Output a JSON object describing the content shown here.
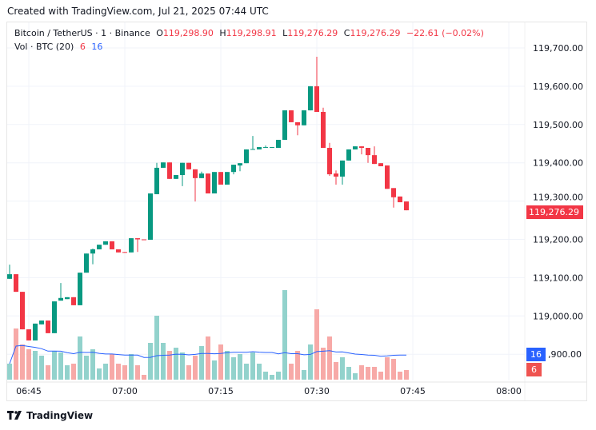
{
  "created": "Created with TradingView.com, Jul 21, 2025 07:44 UTC",
  "legend": {
    "symbol": "Bitcoin / TetherUS · 1 · Binance",
    "o_label": "O",
    "o": "119,298.90",
    "h_label": "H",
    "h": "119,298.91",
    "l_label": "L",
    "l": "119,276.29",
    "c_label": "C",
    "c": "119,276.29",
    "change": "−22.61 (−0.02%)",
    "vol_label": "Vol · BTC (20)",
    "vol": "6",
    "vol_ma": "16"
  },
  "price_badge": "119,276.29",
  "vol_badge": "6",
  "vol_ma_badge": "16",
  "logo_text": "TradingView",
  "colors": {
    "up": "#089981",
    "down": "#f23645",
    "vol_up": "#92d2cc",
    "vol_down": "#f7a9a7",
    "ma": "#2962ff",
    "grid": "#f0f3fa"
  },
  "chart_data": {
    "type": "candlestick",
    "y_ticks": [
      "119,700.00",
      "119,600.00",
      "119,500.00",
      "119,400.00",
      "119,300.00",
      "119,200.00",
      "119,100.00",
      "119,000.00",
      "118,900.00"
    ],
    "y_tick_values": [
      119700,
      119600,
      119500,
      119400,
      119300,
      119200,
      119100,
      119000,
      118900
    ],
    "x_ticks": [
      "06:45",
      "07:00",
      "07:15",
      "07:30",
      "07:45",
      "08:00"
    ],
    "start_time": "06:42",
    "interval_minutes": 1,
    "ohlc": [
      [
        119097,
        119134,
        119097,
        119109
      ],
      [
        119109,
        119109,
        119063,
        119063
      ],
      [
        119063,
        119063,
        118965,
        118965
      ],
      [
        118965,
        118965,
        118936,
        118936
      ],
      [
        118936,
        118980,
        118936,
        118980
      ],
      [
        118978,
        118988,
        118978,
        118988
      ],
      [
        118988,
        118988,
        118955,
        118955
      ],
      [
        118955,
        119038,
        118955,
        119038
      ],
      [
        119040,
        119086,
        119040,
        119047
      ],
      [
        119044,
        119049,
        119044,
        119049
      ],
      [
        119049,
        119049,
        119028,
        119028
      ],
      [
        119028,
        119113,
        119028,
        119113
      ],
      [
        119113,
        119163,
        119113,
        119163
      ],
      [
        119163,
        119176,
        119135,
        119174
      ],
      [
        119174,
        119186,
        119174,
        119186
      ],
      [
        119186,
        119195,
        119186,
        119195
      ],
      [
        119195,
        119195,
        119174,
        119174
      ],
      [
        119174,
        119174,
        119166,
        119166
      ],
      [
        119167,
        119167,
        119165,
        119165
      ],
      [
        119166,
        119203,
        119166,
        119203
      ],
      [
        119203,
        119203,
        119167,
        119200
      ],
      [
        119200,
        119200,
        119199,
        119199
      ],
      [
        119199,
        119320,
        119199,
        119320
      ],
      [
        119318,
        119400,
        119318,
        119387
      ],
      [
        119387,
        119401,
        119387,
        119401
      ],
      [
        119401,
        119401,
        119358,
        119358
      ],
      [
        119358,
        119368,
        119358,
        119368
      ],
      [
        119368,
        119400,
        119339,
        119400
      ],
      [
        119400,
        119400,
        119383,
        119383
      ],
      [
        119383,
        119383,
        119299,
        119360
      ],
      [
        119360,
        119377,
        119360,
        119372
      ],
      [
        119372,
        119372,
        119320,
        119320
      ],
      [
        119320,
        119376,
        119320,
        119376
      ],
      [
        119376,
        119376,
        119343,
        119343
      ],
      [
        119343,
        119376,
        119343,
        119376
      ],
      [
        119376,
        119395,
        119370,
        119395
      ],
      [
        119393,
        119399,
        119378,
        119399
      ],
      [
        119399,
        119435,
        119399,
        119435
      ],
      [
        119435,
        119470,
        119435,
        119436
      ],
      [
        119435,
        119441,
        119435,
        119441
      ],
      [
        119439,
        119445,
        119439,
        119441
      ],
      [
        119440,
        119441,
        119440,
        119441
      ],
      [
        119439,
        119460,
        119439,
        119460
      ],
      [
        119460,
        119537,
        119460,
        119537
      ],
      [
        119537,
        119537,
        119506,
        119506
      ],
      [
        119506,
        119506,
        119472,
        119498
      ],
      [
        119498,
        119537,
        119498,
        119537
      ],
      [
        119537,
        119600,
        119537,
        119600
      ],
      [
        119600,
        119677,
        119533,
        119533
      ],
      [
        119533,
        119544,
        119439,
        119439
      ],
      [
        119439,
        119452,
        119366,
        119370
      ],
      [
        119372,
        119380,
        119343,
        119364
      ],
      [
        119364,
        119406,
        119343,
        119406
      ],
      [
        119406,
        119435,
        119406,
        119435
      ],
      [
        119435,
        119443,
        119435,
        119443
      ],
      [
        119443,
        119443,
        119422,
        119439
      ],
      [
        119439,
        119439,
        119400,
        119420
      ],
      [
        119420,
        119443,
        119397,
        119397
      ],
      [
        119399,
        119399,
        119391,
        119391
      ],
      [
        119393,
        119393,
        119332,
        119332
      ],
      [
        119334,
        119334,
        119283,
        119310
      ],
      [
        119312,
        119312,
        119297,
        119297
      ],
      [
        119299,
        119299,
        119276,
        119276
      ]
    ],
    "volume": [
      10,
      32,
      22,
      19,
      18,
      15,
      9,
      18,
      17,
      9,
      10,
      27,
      15,
      19,
      7,
      10,
      16,
      10,
      9,
      16,
      9,
      3,
      23,
      40,
      23,
      18,
      20,
      17,
      9,
      15,
      21,
      27,
      12,
      22,
      18,
      14,
      16,
      10,
      17,
      10,
      5,
      3,
      5,
      56,
      10,
      18,
      6,
      22,
      44,
      20,
      27,
      11,
      14,
      8,
      4,
      9,
      8,
      8,
      5,
      14,
      13,
      5,
      6
    ],
    "volume_ma_period": 20
  }
}
